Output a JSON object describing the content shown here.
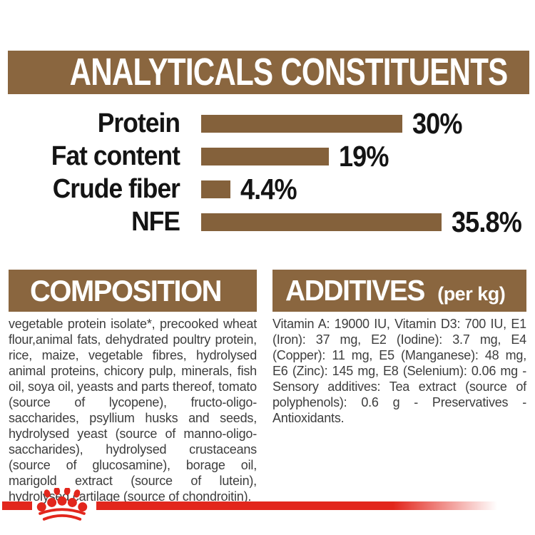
{
  "header": {
    "title": "ANALYTICALS CONSTITUENTS"
  },
  "chart_data": {
    "type": "bar",
    "orientation": "horizontal",
    "title": "ANALYTICALS CONSTITUENTS",
    "categories": [
      "Protein",
      "Fat content",
      "Crude fiber",
      "NFE"
    ],
    "values": [
      30,
      19,
      4.4,
      35.8
    ],
    "value_labels": [
      "30%",
      "19%",
      "4.4%",
      "35.8%"
    ],
    "unit": "%",
    "xlim": [
      0,
      40
    ],
    "bar_color": "#84613B",
    "grid": false,
    "legend": false
  },
  "composition": {
    "heading": "COMPOSITION",
    "body": "vegetable protein isolate*, precooked wheat flour,animal fats, dehydrated poultry protein, rice, maize, vegetable fibres, hydrolysed animal proteins, chicory pulp, minerals, fish oil, soya oil, yeasts and parts thereof, tomato (source of lycopene), fructo-oligo-saccharides, psyllium husks and seeds, hydrolysed yeast (source of manno-oligo-saccharides), hydrolysed crustaceans (source of glucosamine), borage oil, marigold extract (source of lutein), hydrolysed cartilage (source of chondroitin)."
  },
  "additives": {
    "heading": "ADDITIVES",
    "unit_note": "(per kg)",
    "body": "Vitamin A: 19000 IU, Vitamin D3: 700 IU, E1 (Iron): 37 mg, E2 (Iodine): 3.7 mg, E4 (Copper): 11 mg, E5 (Manganese): 48 mg, E6 (Zinc): 145 mg, E8 (Selenium): 0.06 mg - Sensory additives: Tea extract (source of polyphenols): 0.6 g - Preservatives - Antioxidants."
  },
  "footer": {
    "logo": "royal-canin-crown-logo"
  },
  "colors": {
    "header_brown": "#8A663F",
    "bar_brown": "#84613B",
    "brand_red": "#E2261C",
    "body_text": "#3D3D3D",
    "chart_text": "#141414",
    "background": "#FFFFFF"
  }
}
